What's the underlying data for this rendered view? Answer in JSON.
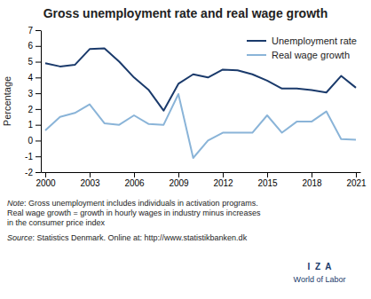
{
  "chart_data": {
    "type": "line",
    "title": "Gross unemployment rate and real wage growth",
    "y_label": "Percentage",
    "x": [
      2000,
      2001,
      2002,
      2003,
      2004,
      2005,
      2006,
      2007,
      2008,
      2009,
      2010,
      2011,
      2012,
      2013,
      2014,
      2015,
      2016,
      2017,
      2018,
      2019,
      2020,
      2021
    ],
    "series": [
      {
        "name": "Unemployment rate",
        "color": "#1a3a6b",
        "values": [
          4.9,
          4.7,
          4.8,
          5.8,
          5.85,
          5.0,
          4.0,
          3.2,
          1.9,
          3.6,
          4.2,
          4.0,
          4.5,
          4.45,
          4.2,
          3.8,
          3.3,
          3.3,
          3.2,
          3.05,
          4.1,
          3.35
        ]
      },
      {
        "name": "Real wage growth",
        "color": "#8ab4d8",
        "values": [
          0.65,
          1.5,
          1.75,
          2.3,
          1.1,
          1.0,
          1.6,
          1.05,
          1.0,
          2.95,
          -1.1,
          0.0,
          0.5,
          0.5,
          0.5,
          1.6,
          0.5,
          1.2,
          1.2,
          1.85,
          0.1,
          0.05
        ]
      }
    ],
    "xlim": [
      1999.7,
      2021.3
    ],
    "xticks": [
      2000,
      2003,
      2006,
      2009,
      2012,
      2015,
      2018,
      2021
    ],
    "ylim": [
      -2,
      7
    ],
    "yticks": [
      -2,
      -1,
      0,
      1,
      2,
      3,
      4,
      5,
      6,
      7
    ],
    "grid": false,
    "legend": "upper right",
    "notes": [
      {
        "label": "Note",
        "lines": [
          ": Gross unemployment includes individuals in activation programs.",
          "Real wage growth = growth in hourly wages in industry minus increases",
          "in the consumer price index"
        ]
      },
      {
        "label": "Source",
        "lines": [
          ": Statistics Denmark. Online at: http://www.statistikbanken.dk"
        ]
      }
    ],
    "annotations": [
      "I  Z  A",
      "World of Labor"
    ]
  }
}
